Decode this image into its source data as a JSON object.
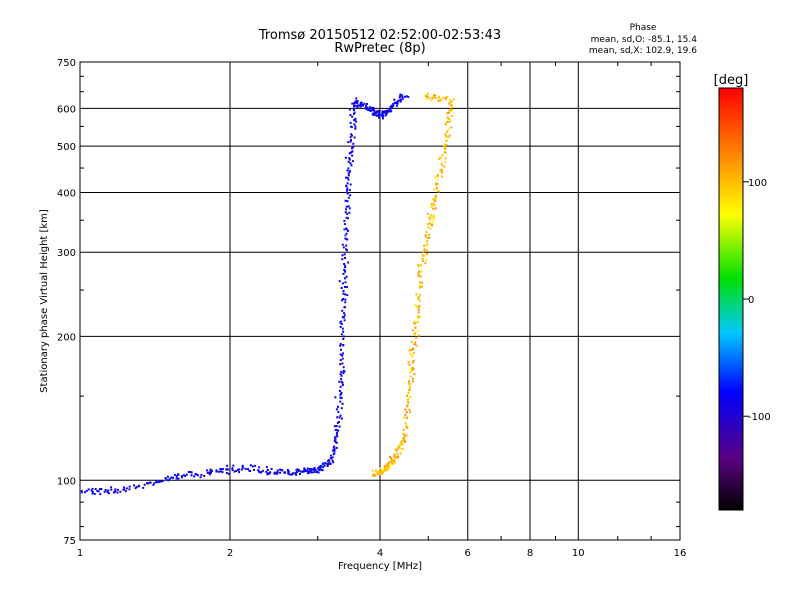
{
  "chart_data": {
    "type": "scatter",
    "title": "Tromsø 20150512 02:52:00-02:53:43",
    "subtitle": "RwPretec (8p)",
    "xlabel": "Frequency [MHz]",
    "ylabel": "Stationary phase Virtual Height [km]",
    "x_scale": "log",
    "y_scale": "log",
    "xlim": [
      1,
      16
    ],
    "ylim": [
      75,
      750
    ],
    "x_ticks": [
      1,
      2,
      4,
      6,
      8,
      10,
      16
    ],
    "y_ticks": [
      75,
      100,
      200,
      300,
      400,
      500,
      600,
      750
    ],
    "x_tick_labels": [
      "1",
      "2",
      "4",
      "6",
      "8",
      "10",
      "16"
    ],
    "y_tick_labels": [
      "75",
      "100",
      "200",
      "300",
      "400",
      "500",
      "600",
      "750"
    ],
    "grid": true,
    "color_scale": {
      "label": "[deg]",
      "range": [
        -180,
        180
      ],
      "ticks": [
        100,
        0,
        -100
      ],
      "tick_labels": [
        "100",
        "0",
        "-100"
      ]
    },
    "phase_stats": {
      "heading": "Phase",
      "line_o": "mean, sd,O: -85.1, 15.4",
      "line_x": "mean, sd,X: 102.9, 19.6"
    },
    "series": [
      {
        "mode": "O",
        "phase_mean": -85.1,
        "phase_sd": 15.4,
        "trace": [
          [
            1.0,
            95
          ],
          [
            1.2,
            95
          ],
          [
            1.5,
            101
          ],
          [
            1.8,
            104
          ],
          [
            2.1,
            106
          ],
          [
            2.5,
            104
          ],
          [
            2.8,
            104
          ],
          [
            3.0,
            105
          ],
          [
            3.2,
            110
          ],
          [
            3.3,
            130
          ],
          [
            3.35,
            170
          ],
          [
            3.38,
            230
          ],
          [
            3.4,
            300
          ],
          [
            3.45,
            400
          ],
          [
            3.5,
            500
          ],
          [
            3.55,
            620
          ],
          [
            3.8,
            600
          ],
          [
            4.0,
            580
          ],
          [
            4.2,
            600
          ],
          [
            4.5,
            640
          ]
        ]
      },
      {
        "mode": "X",
        "phase_mean": 102.9,
        "phase_sd": 19.6,
        "trace": [
          [
            3.9,
            103
          ],
          [
            4.1,
            105
          ],
          [
            4.3,
            112
          ],
          [
            4.5,
            125
          ],
          [
            4.6,
            160
          ],
          [
            4.7,
            200
          ],
          [
            4.8,
            260
          ],
          [
            5.0,
            330
          ],
          [
            5.2,
            400
          ],
          [
            5.4,
            500
          ],
          [
            5.6,
            620
          ],
          [
            4.9,
            640
          ]
        ]
      }
    ]
  }
}
